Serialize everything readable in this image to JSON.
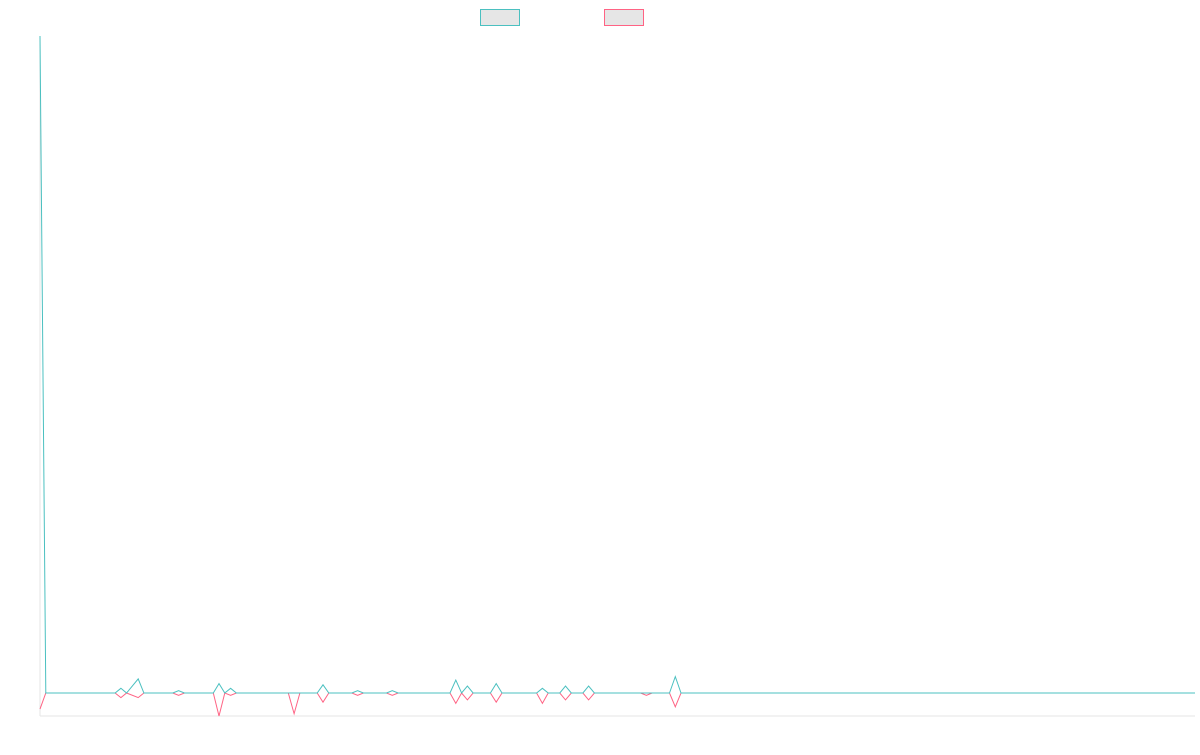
{
  "chart_data": {
    "type": "line",
    "title": "",
    "xlabel": "",
    "ylabel": "",
    "legend_position": "top-center",
    "grid": false,
    "x_count": 200,
    "ylim": [
      -1,
      28
    ],
    "series": [
      {
        "name": "",
        "color": "#4bc0c0",
        "points": [
          [
            0,
            28
          ],
          [
            1,
            0
          ],
          [
            13,
            0
          ],
          [
            14,
            0.2
          ],
          [
            15,
            0
          ],
          [
            17,
            0.6
          ],
          [
            18,
            0
          ],
          [
            23,
            0
          ],
          [
            24,
            0.1
          ],
          [
            25,
            0
          ],
          [
            30,
            0
          ],
          [
            31,
            0.4
          ],
          [
            32,
            0
          ],
          [
            33,
            0.2
          ],
          [
            34,
            0
          ],
          [
            43,
            0
          ],
          [
            44,
            0
          ],
          [
            45,
            0
          ],
          [
            48,
            0
          ],
          [
            49,
            0.35
          ],
          [
            50,
            0
          ],
          [
            54,
            0
          ],
          [
            55,
            0.1
          ],
          [
            56,
            0
          ],
          [
            60,
            0
          ],
          [
            61,
            0.1
          ],
          [
            62,
            0
          ],
          [
            71,
            0
          ],
          [
            72,
            0.55
          ],
          [
            73,
            0
          ],
          [
            74,
            0.3
          ],
          [
            75,
            0
          ],
          [
            78,
            0
          ],
          [
            79,
            0.4
          ],
          [
            80,
            0
          ],
          [
            86,
            0
          ],
          [
            87,
            0.2
          ],
          [
            88,
            0
          ],
          [
            90,
            0
          ],
          [
            91,
            0.3
          ],
          [
            92,
            0
          ],
          [
            94,
            0
          ],
          [
            95,
            0.3
          ],
          [
            96,
            0
          ],
          [
            104,
            0
          ],
          [
            105,
            0
          ],
          [
            106,
            0
          ],
          [
            109,
            0
          ],
          [
            110,
            0.7
          ],
          [
            111,
            0
          ],
          [
            200,
            0
          ]
        ]
      },
      {
        "name": "",
        "color": "#ff6384",
        "points": [
          [
            0,
            -0.7
          ],
          [
            1,
            0
          ],
          [
            13,
            0
          ],
          [
            14,
            -0.2
          ],
          [
            15,
            0
          ],
          [
            17,
            -0.2
          ],
          [
            18,
            0
          ],
          [
            23,
            0
          ],
          [
            24,
            -0.1
          ],
          [
            25,
            0
          ],
          [
            30,
            0
          ],
          [
            31,
            -1
          ],
          [
            32,
            0
          ],
          [
            33,
            -0.1
          ],
          [
            34,
            0
          ],
          [
            43,
            0
          ],
          [
            44,
            -0.9
          ],
          [
            45,
            0
          ],
          [
            48,
            0
          ],
          [
            49,
            -0.4
          ],
          [
            50,
            0
          ],
          [
            54,
            0
          ],
          [
            55,
            -0.1
          ],
          [
            56,
            0
          ],
          [
            60,
            0
          ],
          [
            61,
            -0.1
          ],
          [
            62,
            0
          ],
          [
            71,
            0
          ],
          [
            72,
            -0.45
          ],
          [
            73,
            0
          ],
          [
            74,
            -0.3
          ],
          [
            75,
            0
          ],
          [
            78,
            0
          ],
          [
            79,
            -0.4
          ],
          [
            80,
            0
          ],
          [
            86,
            0
          ],
          [
            87,
            -0.45
          ],
          [
            88,
            0
          ],
          [
            90,
            0
          ],
          [
            91,
            -0.3
          ],
          [
            92,
            0
          ],
          [
            94,
            0
          ],
          [
            95,
            -0.3
          ],
          [
            96,
            0
          ],
          [
            104,
            0
          ],
          [
            105,
            -0.1
          ],
          [
            106,
            0
          ],
          [
            109,
            0
          ],
          [
            110,
            -0.6
          ],
          [
            111,
            0
          ],
          [
            200,
            0
          ]
        ]
      }
    ]
  }
}
